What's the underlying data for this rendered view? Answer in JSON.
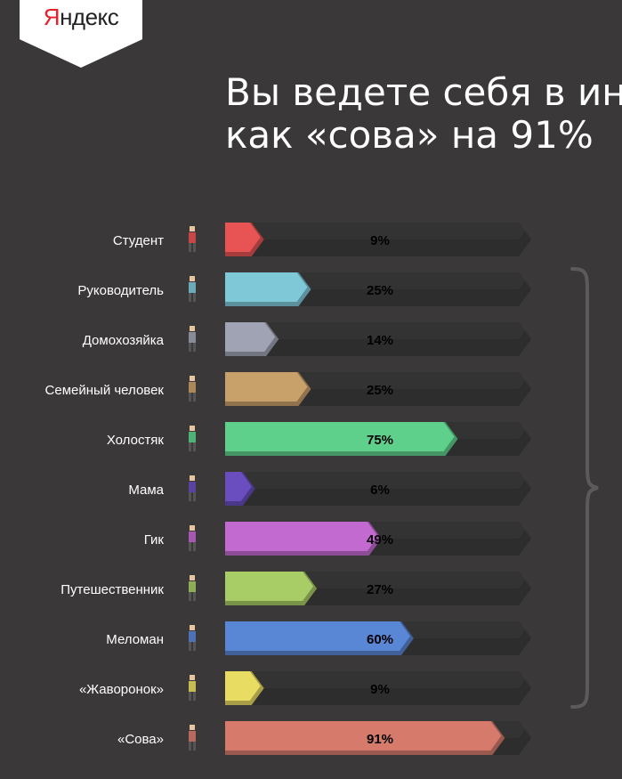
{
  "logo": {
    "first": "Я",
    "rest": "ндекс"
  },
  "headline": {
    "line1": "Вы ведете себя в инте",
    "line2": "как «сова» на 91%"
  },
  "chart_data": {
    "type": "bar",
    "orientation": "horizontal",
    "categories": [
      "Студент",
      "Руководитель",
      "Домохозяйка",
      "Семейный человек",
      "Холостяк",
      "Мама",
      "Гик",
      "Путешественник",
      "Меломан",
      "«Жаворонок»",
      "«Сова»"
    ],
    "values": [
      9,
      25,
      14,
      25,
      75,
      6,
      49,
      27,
      60,
      9,
      91
    ],
    "labels": [
      "9%",
      "25%",
      "14%",
      "25%",
      "75%",
      "6%",
      "49%",
      "27%",
      "60%",
      "9%",
      "91%"
    ],
    "colors": [
      "#e85454",
      "#7ec8d8",
      "#a0a3b3",
      "#c8a06a",
      "#5ed08c",
      "#6a4ec0",
      "#c26ad0",
      "#a8cc66",
      "#5a86d6",
      "#e8dc62",
      "#d67b6c"
    ],
    "xlim": [
      0,
      100
    ],
    "grid": false,
    "legend": "none"
  }
}
